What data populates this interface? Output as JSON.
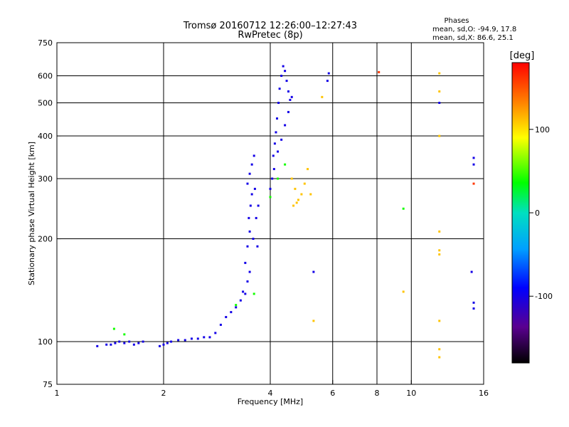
{
  "chart_data": {
    "type": "scatter",
    "title": "Tromsø 20160712 12:26:00–12:27:43",
    "subtitle": "RwPretec (8p)",
    "xlabel": "Frequency [MHz]",
    "ylabel": "Stationary phase Virtual Height [km]",
    "x_scale": "log",
    "y_scale": "log",
    "xlim": [
      1,
      16
    ],
    "ylim": [
      75,
      750
    ],
    "x_ticks": [
      1,
      2,
      4,
      6,
      8,
      10,
      16
    ],
    "y_ticks": [
      75,
      100,
      200,
      300,
      400,
      500,
      600,
      750
    ],
    "grid": true,
    "phase_stats": {
      "title": "Phases",
      "o_line": "mean, sd,O: -94.9, 17.8",
      "x_line": "mean, sd,X: 86.6, 25.1"
    },
    "colorbar": {
      "label": "[deg]",
      "range": [
        -180,
        180
      ],
      "ticks": [
        -100,
        0,
        100
      ]
    },
    "series": [
      {
        "phase_deg": -100,
        "points": [
          [
            1.3,
            97
          ],
          [
            1.38,
            98
          ],
          [
            1.42,
            98
          ],
          [
            1.46,
            99
          ],
          [
            1.5,
            100
          ],
          [
            1.55,
            99
          ],
          [
            1.6,
            100
          ],
          [
            1.65,
            98
          ],
          [
            1.7,
            99
          ],
          [
            1.75,
            100
          ],
          [
            1.95,
            97
          ],
          [
            2.0,
            98
          ],
          [
            2.05,
            99
          ],
          [
            2.1,
            100
          ],
          [
            2.2,
            101
          ],
          [
            2.3,
            101
          ],
          [
            2.4,
            102
          ],
          [
            2.5,
            102
          ],
          [
            2.6,
            103
          ],
          [
            2.7,
            103
          ],
          [
            2.8,
            106
          ],
          [
            2.9,
            112
          ],
          [
            3.0,
            118
          ],
          [
            3.1,
            122
          ],
          [
            3.2,
            126
          ],
          [
            3.3,
            132
          ],
          [
            3.35,
            140
          ],
          [
            3.4,
            138
          ],
          [
            3.45,
            150
          ],
          [
            3.5,
            160
          ],
          [
            3.4,
            170
          ],
          [
            3.45,
            190
          ],
          [
            3.5,
            210
          ],
          [
            3.48,
            230
          ],
          [
            3.52,
            250
          ],
          [
            3.55,
            270
          ],
          [
            3.45,
            290
          ],
          [
            3.5,
            310
          ],
          [
            3.55,
            330
          ],
          [
            3.6,
            350
          ],
          [
            3.65,
            230
          ],
          [
            3.7,
            250
          ],
          [
            3.62,
            280
          ],
          [
            3.58,
            200
          ],
          [
            3.68,
            190
          ],
          [
            4.0,
            280
          ],
          [
            4.05,
            300
          ],
          [
            4.1,
            320
          ],
          [
            4.08,
            350
          ],
          [
            4.12,
            380
          ],
          [
            4.15,
            410
          ],
          [
            4.18,
            450
          ],
          [
            4.22,
            500
          ],
          [
            4.25,
            550
          ],
          [
            4.3,
            600
          ],
          [
            4.35,
            640
          ],
          [
            4.4,
            620
          ],
          [
            4.45,
            580
          ],
          [
            4.5,
            540
          ],
          [
            4.55,
            510
          ],
          [
            4.6,
            520
          ],
          [
            4.5,
            470
          ],
          [
            4.4,
            430
          ],
          [
            4.3,
            390
          ],
          [
            4.2,
            360
          ],
          [
            5.3,
            160
          ],
          [
            5.8,
            580
          ],
          [
            5.85,
            610
          ],
          [
            12.0,
            500
          ],
          [
            15.0,
            345
          ],
          [
            15.0,
            330
          ],
          [
            14.8,
            160
          ],
          [
            15.0,
            130
          ],
          [
            15.0,
            125
          ]
        ]
      },
      {
        "phase_deg": 40,
        "points": [
          [
            1.45,
            109
          ],
          [
            1.55,
            105
          ],
          [
            3.2,
            128
          ],
          [
            3.6,
            138
          ],
          [
            4.0,
            265
          ],
          [
            4.2,
            300
          ],
          [
            4.4,
            330
          ],
          [
            9.5,
            245
          ]
        ]
      },
      {
        "phase_deg": 110,
        "points": [
          [
            4.6,
            300
          ],
          [
            4.7,
            280
          ],
          [
            4.8,
            260
          ],
          [
            4.9,
            270
          ],
          [
            5.0,
            290
          ],
          [
            5.1,
            320
          ],
          [
            5.2,
            270
          ],
          [
            5.6,
            520
          ],
          [
            4.65,
            250
          ],
          [
            4.75,
            255
          ],
          [
            5.3,
            115
          ],
          [
            9.5,
            140
          ],
          [
            12.0,
            610
          ],
          [
            12.0,
            540
          ],
          [
            12.0,
            400
          ],
          [
            12.0,
            210
          ],
          [
            12.0,
            185
          ],
          [
            12.0,
            180
          ],
          [
            12.0,
            115
          ],
          [
            12.0,
            90
          ],
          [
            12.0,
            95
          ]
        ]
      },
      {
        "phase_deg": 160,
        "points": [
          [
            8.1,
            615
          ],
          [
            15.0,
            290
          ]
        ]
      }
    ]
  }
}
